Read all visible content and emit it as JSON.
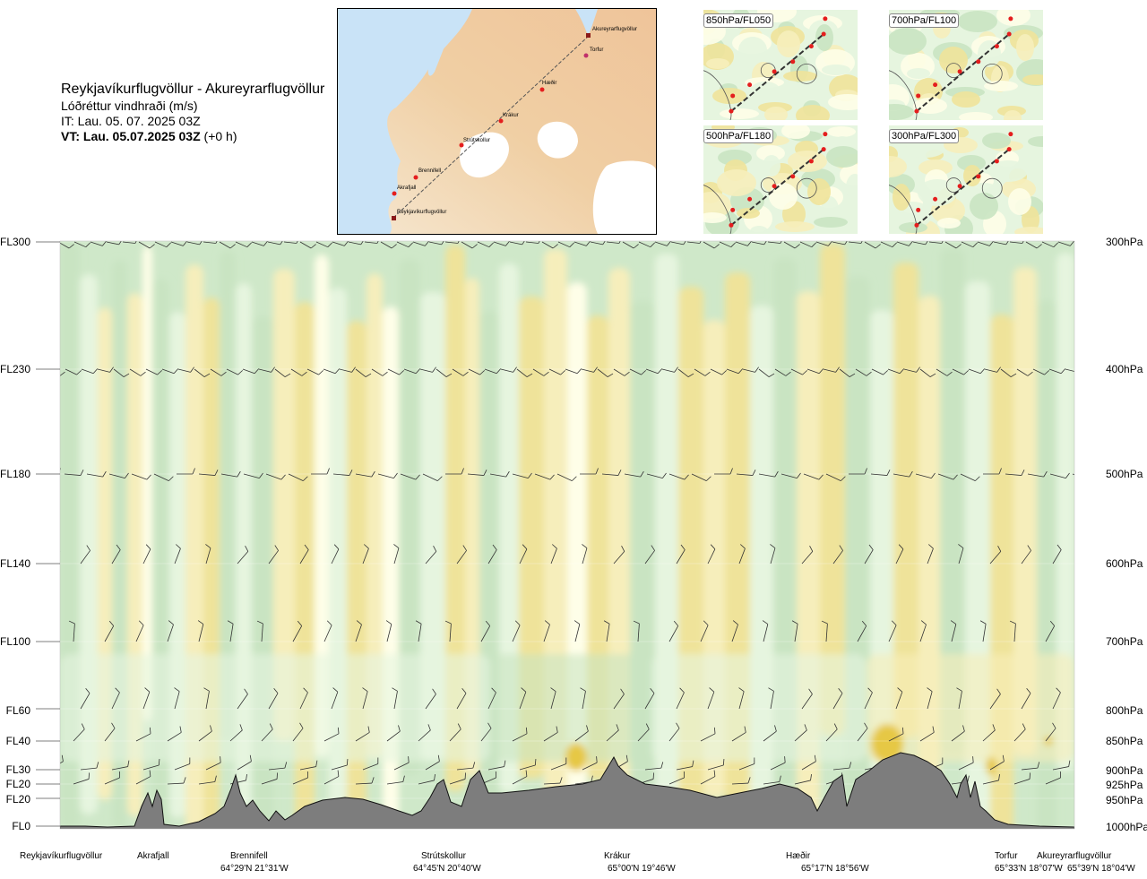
{
  "header": {
    "route": "Reykjavíkurflugvöllur - Akureyrarflugvöllur",
    "parameter": "Lóðréttur vindhraði (m/s)",
    "issue_time": "IT: Lau. 05. 07. 2025 03Z",
    "valid_time_bold": "VT: Lau. 05.07.2025 03Z",
    "valid_offset": "(+0 h)"
  },
  "overview_map": {
    "waypoints": [
      "Akureyrarflugvöllur",
      "Torfur",
      "Hæðir",
      "Krákur",
      "Strútskollur",
      "Brennifell",
      "Akrafjall",
      "Reykjavíkurflugvöllur"
    ]
  },
  "mini_maps": [
    {
      "label": "850hPa/FL050"
    },
    {
      "label": "700hPa/FL100"
    },
    {
      "label": "500hPa/FL180"
    },
    {
      "label": "300hPa/FL300"
    }
  ],
  "flight_levels": [
    "FL300",
    "FL230",
    "FL180",
    "FL140",
    "FL100",
    "FL60",
    "FL40",
    "FL30",
    "FL20",
    "FL20",
    "FL0"
  ],
  "pressure_levels": [
    "300hPa",
    "400hPa",
    "500hPa",
    "600hPa",
    "700hPa",
    "800hPa",
    "850hPa",
    "900hPa",
    "925hPa",
    "950hPa",
    "1000hPa"
  ],
  "route_points": [
    {
      "name": "Reykjavíkurflugvöllur",
      "coord": ""
    },
    {
      "name": "Akrafjall",
      "coord": ""
    },
    {
      "name": "Brennifell",
      "coord": "64°29'N 21°31'W"
    },
    {
      "name": "Strútskollur",
      "coord": "64°45'N 20°40'W"
    },
    {
      "name": "Krákur",
      "coord": "65°00'N 19°46'W"
    },
    {
      "name": "Hæðir",
      "coord": "65°17'N 18°56'W"
    },
    {
      "name": "Torfur",
      "coord": "65°33'N 18°07'W"
    },
    {
      "name": "Akureyrarflugvöllur",
      "coord": "65°39'N 18°04'W"
    }
  ],
  "chart_data": {
    "type": "heatmap",
    "title": "Lóðréttur vindhraði (m/s)",
    "xlabel": "",
    "ylabel": "",
    "y_levels_hpa": [
      300,
      400,
      500,
      600,
      700,
      800,
      850,
      900,
      925,
      950,
      1000
    ],
    "x_waypoints": [
      "Reykjavíkurflugvöllur",
      "Akrafjall",
      "Brennifell",
      "Strútskollur",
      "Krákur",
      "Hæðir",
      "Torfur",
      "Akureyrarflugvöllur"
    ],
    "color_scale": {
      "strong_down": "#c9e4c2",
      "weak_down": "#e6f5df",
      "neutral": "#fefee8",
      "weak_up": "#f6eebb",
      "up": "#efe39a",
      "strong_up": "#e6c844",
      "very_strong_up": "#d9901e"
    },
    "terrain_color": "#7d7d7d",
    "barb_color": "#333333"
  }
}
